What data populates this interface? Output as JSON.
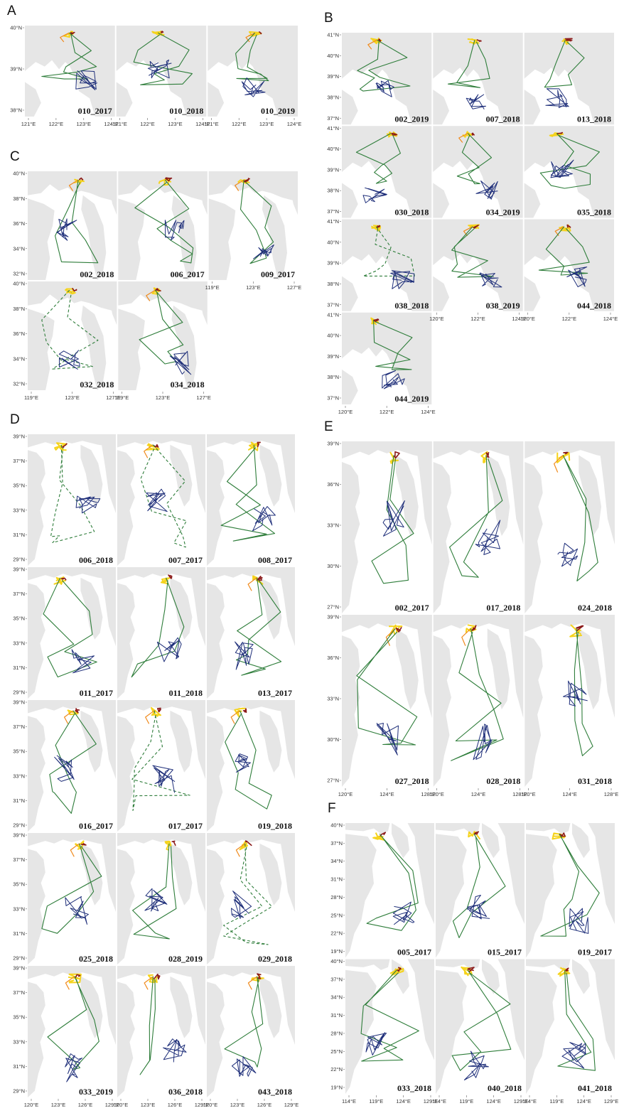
{
  "colors": {
    "land": "#e6e6e6",
    "green": "#2e7d3a",
    "navy": "#1f2f7a",
    "yellow": "#f5d31c",
    "orange": "#f08a1c",
    "darkred": "#8b1a1a",
    "pink": "#e89ad0"
  },
  "panels": [
    {
      "letter": "A",
      "box": [
        34,
        35,
        420,
        165
      ],
      "cols": 3,
      "rows": 1,
      "ylabels": [
        "40°N",
        "39°N",
        "38°N"
      ],
      "xlabels": [
        [
          "121°E",
          "122°E",
          "123°E",
          "124°E"
        ],
        [
          "121°E",
          "122°E",
          "123°E",
          "124°E"
        ],
        [
          "121°E",
          "122°E",
          "123°E",
          "124°E"
        ]
      ],
      "maps": [
        {
          "id": "010_2017",
          "style": "north"
        },
        {
          "id": "010_2018",
          "style": "north"
        },
        {
          "id": "010_2019",
          "style": "north"
        }
      ]
    },
    {
      "letter": "B",
      "box": [
        480,
        45,
        865,
        570
      ],
      "cols": 3,
      "rows": 4,
      "ylabels": [
        "41°N",
        "40°N",
        "39°N",
        "38°N",
        "37°N"
      ],
      "xlabels": [
        [
          "120°E",
          "122°E",
          "124°E"
        ],
        [
          "120°E",
          "122°E",
          "124°E"
        ],
        [
          "120°E",
          "122°E",
          "124°E"
        ]
      ],
      "maps": [
        {
          "id": "002_2019",
          "style": "north"
        },
        {
          "id": "007_2018",
          "style": "north"
        },
        {
          "id": "013_2018",
          "style": "north"
        },
        {
          "id": "030_2018",
          "style": "north"
        },
        {
          "id": "034_2019",
          "style": "north"
        },
        {
          "id": "035_2018",
          "style": "north"
        },
        {
          "id": "038_2018",
          "style": "north"
        },
        {
          "id": "038_2019",
          "style": "north"
        },
        {
          "id": "044_2018",
          "style": "north"
        },
        {
          "id": "044_2019",
          "style": "north"
        }
      ]
    },
    {
      "letter": "C",
      "box": [
        38,
        240,
        420,
        550
      ],
      "cols": 3,
      "rows": 2,
      "ylabels": [
        "40°N",
        "38°N",
        "36°N",
        "34°N",
        "32°N"
      ],
      "xlabels": [
        [
          "119°E",
          "123°E",
          "127°E"
        ],
        [
          "119°E",
          "123°E",
          "127°E"
        ],
        [
          "119°E",
          "123°E",
          "127°E"
        ]
      ],
      "maps": [
        {
          "id": "002_2018",
          "style": "mid"
        },
        {
          "id": "006_2017",
          "style": "mid"
        },
        {
          "id": "009_2017",
          "style": "mid"
        },
        {
          "id": "032_2018",
          "style": "mid"
        },
        {
          "id": "034_2018",
          "style": "mid"
        }
      ]
    },
    {
      "letter": "D",
      "box": [
        38,
        610,
        416,
        1545
      ],
      "cols": 3,
      "rows": 5,
      "ylabels": [
        "39°N",
        "37°N",
        "35°N",
        "33°N",
        "31°N",
        "29°N"
      ],
      "xlabels": [
        [
          "120°E",
          "123°E",
          "126°E",
          "129°E"
        ],
        [
          "120°E",
          "123°E",
          "126°E",
          "129°E"
        ],
        [
          "120°E",
          "123°E",
          "126°E",
          "129°E"
        ]
      ],
      "maps": [
        {
          "id": "006_2018",
          "style": "south"
        },
        {
          "id": "007_2017",
          "style": "south"
        },
        {
          "id": "008_2017",
          "style": "south"
        },
        {
          "id": "011_2017",
          "style": "south"
        },
        {
          "id": "011_2018",
          "style": "south"
        },
        {
          "id": "013_2017",
          "style": "south"
        },
        {
          "id": "016_2017",
          "style": "south"
        },
        {
          "id": "017_2017",
          "style": "south"
        },
        {
          "id": "019_2018",
          "style": "south"
        },
        {
          "id": "025_2018",
          "style": "south"
        },
        {
          "id": "028_2019",
          "style": "south"
        },
        {
          "id": "029_2018",
          "style": "south"
        },
        {
          "id": "033_2019",
          "style": "south"
        },
        {
          "id": "036_2018",
          "style": "south"
        },
        {
          "id": "043_2018",
          "style": "south"
        }
      ]
    },
    {
      "letter": "E",
      "box": [
        480,
        620,
        866,
        1108
      ],
      "cols": 3,
      "rows": 2,
      "ylabels": [
        "39°N",
        "36°N",
        "33°N",
        "30°N",
        "27°N"
      ],
      "xlabels": [
        [
          "120°E",
          "124°E",
          "128°E"
        ],
        [
          "120°E",
          "124°E",
          "128°E"
        ],
        [
          "120°E",
          "124°E",
          "128°E"
        ]
      ],
      "maps": [
        {
          "id": "002_2017",
          "style": "south"
        },
        {
          "id": "017_2018",
          "style": "south"
        },
        {
          "id": "024_2018",
          "style": "south"
        },
        {
          "id": "027_2018",
          "style": "south"
        },
        {
          "id": "028_2018",
          "style": "south"
        },
        {
          "id": "031_2018",
          "style": "south"
        }
      ]
    },
    {
      "letter": "F",
      "box": [
        485,
        1157,
        866,
        1540
      ],
      "cols": 3,
      "rows": 2,
      "ylabels": [
        "40°N",
        "37°N",
        "34°N",
        "31°N",
        "28°N",
        "25°N",
        "22°N",
        "19°N"
      ],
      "xlabels": [
        [
          "114°E",
          "119°E",
          "124°E",
          "129°E"
        ],
        [
          "114°E",
          "119°E",
          "124°E",
          "129°E"
        ],
        [
          "114°E",
          "119°E",
          "124°E",
          "129°E"
        ]
      ],
      "maps": [
        {
          "id": "005_2017",
          "style": "far"
        },
        {
          "id": "015_2017",
          "style": "far"
        },
        {
          "id": "019_2017",
          "style": "far"
        },
        {
          "id": "033_2018",
          "style": "far"
        },
        {
          "id": "040_2018",
          "style": "far"
        },
        {
          "id": "041_2018",
          "style": "far"
        }
      ]
    }
  ]
}
